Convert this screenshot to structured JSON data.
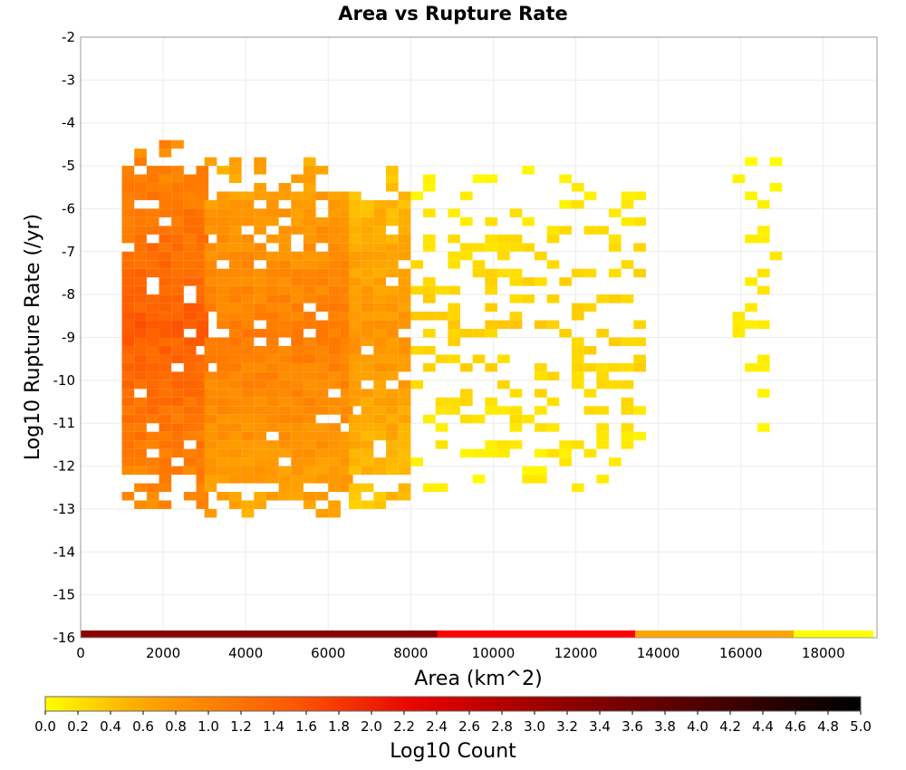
{
  "chart_data": {
    "type": "heatmap",
    "title": "Area vs Rupture Rate",
    "xlabel": "Area (km^2)",
    "ylabel": "Log10 Rupture Rate (/yr)",
    "xlim": [
      0,
      19300
    ],
    "ylim": [
      -16,
      -2
    ],
    "x_ticks": [
      0,
      2000,
      4000,
      6000,
      8000,
      10000,
      12000,
      14000,
      16000,
      18000
    ],
    "y_ticks": [
      -2,
      -3,
      -4,
      -5,
      -6,
      -7,
      -8,
      -9,
      -10,
      -11,
      -12,
      -13,
      -14,
      -15,
      -16
    ],
    "grid": true,
    "bin_width_x": 300,
    "bin_height_y": 0.2,
    "colorbar": {
      "label": "Log10 Count",
      "range": [
        0,
        5
      ],
      "ticks": [
        "0.0",
        "0.2",
        "0.4",
        "0.6",
        "0.8",
        "1.0",
        "1.2",
        "1.4",
        "1.6",
        "1.8",
        "2.0",
        "2.2",
        "2.4",
        "2.6",
        "2.8",
        "3.0",
        "3.2",
        "3.4",
        "3.6",
        "3.8",
        "4.0",
        "4.2",
        "4.4",
        "4.6",
        "4.8",
        "5.0"
      ],
      "colors": [
        "#ffff00",
        "#ffa500",
        "#ff5a00",
        "#e60000",
        "#960000",
        "#500000",
        "#000000"
      ],
      "placement": "bottom"
    },
    "dense_regions": [
      {
        "x": [
          1000,
          3000
        ],
        "y": [
          -13.0,
          -4.6
        ],
        "log10_count": [
          0.8,
          1.6
        ]
      },
      {
        "x": [
          3000,
          6500
        ],
        "y": [
          -13.2,
          -5.0
        ],
        "log10_count": [
          0.5,
          1.2
        ]
      },
      {
        "x": [
          6500,
          8000
        ],
        "y": [
          -13.0,
          -5.2
        ],
        "log10_count": [
          0.3,
          0.9
        ]
      },
      {
        "x": [
          8000,
          13500
        ],
        "y": [
          -12.6,
          -5.0
        ],
        "log10_count": [
          0.0,
          0.4
        ]
      },
      {
        "x": [
          15800,
          16800
        ],
        "y": [
          -11.2,
          -4.8
        ],
        "log10_count": [
          0.0,
          0.2
        ]
      }
    ],
    "marginal_x_distribution": {
      "y": -16,
      "x_range": [
        0,
        19200
      ],
      "description_colors": [
        "#8b0000",
        "#ff0000",
        "#ffa500",
        "#ffff00"
      ]
    }
  }
}
